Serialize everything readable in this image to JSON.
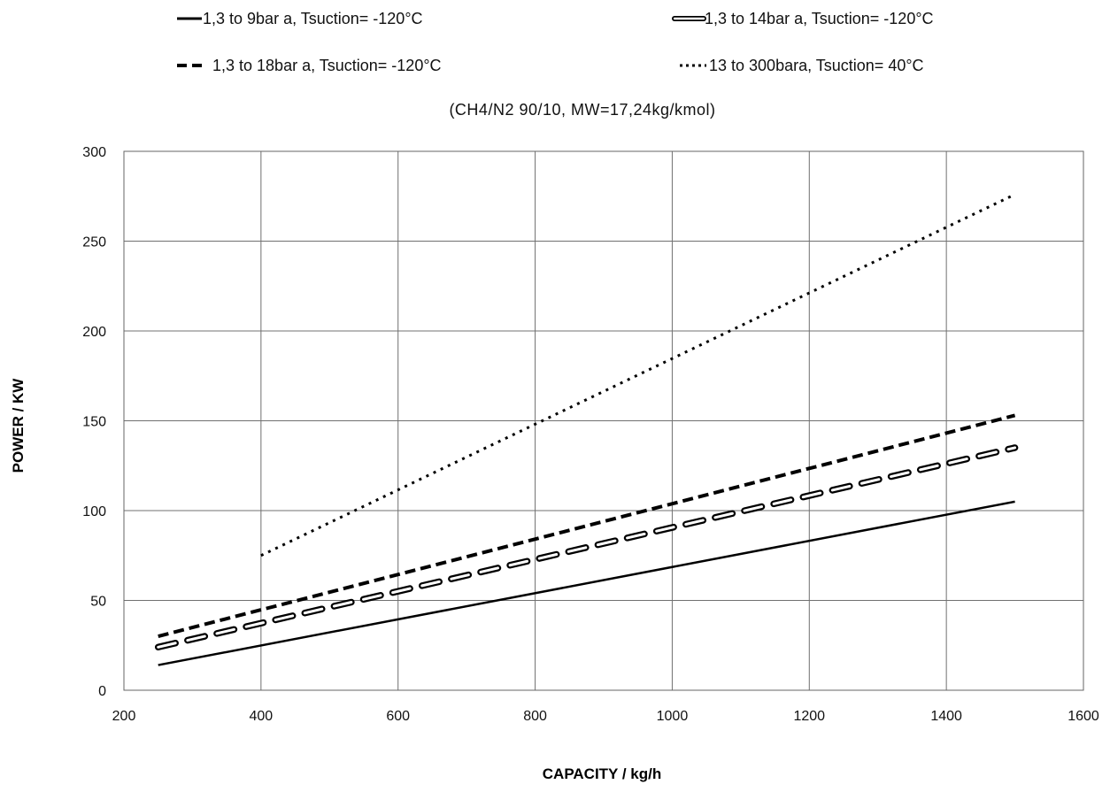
{
  "chart_data": {
    "type": "line",
    "subtitle": "(CH4/N2 90/10, MW=17,24kg/kmol)",
    "xlabel": "CAPACITY / kg/h",
    "ylabel": "POWER / KW",
    "xlim": [
      200,
      1600
    ],
    "ylim": [
      0,
      300
    ],
    "xticks": [
      "200",
      "400",
      "600",
      "800",
      "1000",
      "1200",
      "1400",
      "1600"
    ],
    "yticks": [
      "0",
      "50",
      "100",
      "150",
      "200",
      "250",
      "300"
    ],
    "grid": true,
    "legend_placement": "top",
    "series": [
      {
        "name": "1,3 to 9bar a, Tsuction= -120°C",
        "style": "solid",
        "x": [
          250,
          1500
        ],
        "y": [
          14,
          105
        ]
      },
      {
        "name": "1,3 to 14bar a, Tsuction= -120°C",
        "style": "double-dash",
        "x": [
          250,
          1500
        ],
        "y": [
          24,
          135
        ]
      },
      {
        "name": "1,3 to 18bar a, Tsuction= -120°C",
        "style": "dashed",
        "x": [
          250,
          1500
        ],
        "y": [
          30,
          153
        ]
      },
      {
        "name": "13 to 300bara, Tsuction= 40°C",
        "style": "dotted",
        "x": [
          400,
          1500
        ],
        "y": [
          75,
          276
        ]
      }
    ]
  }
}
